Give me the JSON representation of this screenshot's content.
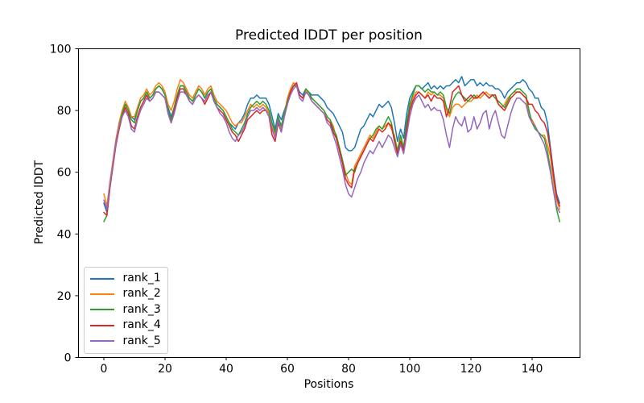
{
  "figure": {
    "title": "Predicted lDDT per position",
    "xlabel": "Positions",
    "ylabel": "Predicted lDDT"
  },
  "chart_data": {
    "type": "line",
    "title": "Predicted lDDT per position",
    "xlabel": "Positions",
    "ylabel": "Predicted lDDT",
    "xlim": [
      -8,
      157
    ],
    "ylim": [
      0,
      100
    ],
    "x_ticks": [
      0,
      20,
      40,
      60,
      80,
      100,
      120,
      140
    ],
    "y_ticks": [
      0,
      20,
      40,
      60,
      80,
      100
    ],
    "grid": false,
    "legend_position": "lower left",
    "n_points": 150,
    "x_start": 0,
    "x_step": 1,
    "series": [
      {
        "name": "rank_1",
        "color": "#1f77b4",
        "values": [
          50,
          47,
          56,
          63,
          70,
          76,
          80,
          82,
          81,
          78,
          77,
          80,
          83,
          84,
          86,
          84,
          85,
          87,
          88,
          87,
          85,
          81,
          78,
          81,
          85,
          88,
          88,
          86,
          84,
          83,
          85,
          87,
          86,
          84,
          86,
          87,
          84,
          82,
          81,
          80,
          78,
          76,
          75,
          74,
          76,
          77,
          79,
          82,
          84,
          84,
          85,
          84,
          84,
          84,
          82,
          78,
          74,
          79,
          77,
          80,
          83,
          86,
          88,
          88,
          86,
          85,
          87,
          86,
          85,
          85,
          85,
          84,
          83,
          81,
          80,
          79,
          77,
          75,
          73,
          68,
          67,
          67,
          68,
          71,
          74,
          75,
          77,
          79,
          78,
          80,
          82,
          81,
          82,
          83,
          81,
          76,
          70,
          74,
          71,
          79,
          84,
          86,
          88,
          88,
          87,
          88,
          89,
          87,
          88,
          87,
          88,
          87,
          88,
          88,
          89,
          90,
          89,
          91,
          88,
          89,
          90,
          90,
          88,
          89,
          88,
          89,
          88,
          88,
          87,
          87,
          86,
          84,
          86,
          87,
          88,
          89,
          89,
          90,
          89,
          87,
          86,
          84,
          84,
          81,
          80,
          76,
          68,
          60,
          53,
          50
        ]
      },
      {
        "name": "rank_2",
        "color": "#ff7f0e",
        "values": [
          53,
          49,
          57,
          64,
          71,
          76,
          80,
          83,
          81,
          78,
          78,
          81,
          84,
          85,
          87,
          85,
          86,
          88,
          89,
          88,
          86,
          82,
          80,
          83,
          87,
          90,
          89,
          87,
          85,
          84,
          86,
          88,
          87,
          85,
          87,
          88,
          85,
          83,
          82,
          81,
          80,
          78,
          76,
          75,
          76,
          76,
          78,
          80,
          82,
          81,
          82,
          81,
          82,
          81,
          79,
          75,
          72,
          78,
          74,
          79,
          84,
          87,
          89,
          88,
          85,
          84,
          87,
          85,
          84,
          83,
          82,
          81,
          80,
          78,
          77,
          75,
          71,
          68,
          64,
          60,
          57,
          56,
          62,
          64,
          66,
          68,
          70,
          72,
          71,
          73,
          75,
          74,
          75,
          76,
          74,
          72,
          67,
          71,
          68,
          75,
          81,
          84,
          86,
          86,
          85,
          84,
          86,
          85,
          86,
          85,
          85,
          84,
          80,
          78,
          81,
          82,
          82,
          81,
          82,
          83,
          83,
          84,
          85,
          84,
          85,
          86,
          85,
          85,
          84,
          82,
          81,
          82,
          84,
          85,
          86,
          86,
          86,
          85,
          84,
          78,
          77,
          75,
          73,
          72,
          72,
          69,
          65,
          57,
          51,
          48
        ]
      },
      {
        "name": "rank_3",
        "color": "#2ca02c",
        "values": [
          44,
          46,
          55,
          63,
          70,
          75,
          79,
          82,
          80,
          77,
          76,
          80,
          83,
          84,
          86,
          84,
          85,
          87,
          88,
          87,
          85,
          80,
          77,
          81,
          85,
          88,
          88,
          86,
          84,
          83,
          85,
          87,
          86,
          84,
          86,
          87,
          84,
          82,
          81,
          80,
          78,
          76,
          74,
          73,
          72,
          74,
          76,
          79,
          81,
          82,
          83,
          82,
          83,
          82,
          80,
          76,
          73,
          78,
          75,
          79,
          83,
          86,
          88,
          88,
          85,
          84,
          87,
          86,
          84,
          83,
          82,
          81,
          80,
          78,
          77,
          74,
          72,
          68,
          64,
          59,
          60,
          61,
          60,
          63,
          65,
          67,
          69,
          71,
          72,
          74,
          75,
          74,
          76,
          78,
          76,
          71,
          67,
          72,
          68,
          76,
          82,
          85,
          88,
          88,
          87,
          86,
          87,
          86,
          86,
          85,
          86,
          85,
          81,
          79,
          83,
          85,
          86,
          85,
          84,
          83,
          84,
          85,
          84,
          85,
          86,
          85,
          84,
          85,
          84,
          83,
          82,
          81,
          83,
          85,
          86,
          87,
          87,
          86,
          85,
          80,
          76,
          74,
          73,
          72,
          71,
          67,
          61,
          54,
          48,
          44
        ]
      },
      {
        "name": "rank_4",
        "color": "#d62728",
        "values": [
          47,
          46,
          55,
          62,
          69,
          74,
          78,
          81,
          79,
          75,
          74,
          78,
          81,
          83,
          85,
          83,
          84,
          86,
          86,
          85,
          84,
          79,
          76,
          80,
          84,
          87,
          87,
          85,
          83,
          82,
          84,
          85,
          84,
          82,
          84,
          86,
          83,
          81,
          80,
          79,
          77,
          75,
          73,
          72,
          70,
          72,
          74,
          77,
          78,
          79,
          80,
          79,
          80,
          80,
          78,
          72,
          70,
          76,
          73,
          78,
          82,
          86,
          88,
          89,
          85,
          84,
          86,
          85,
          83,
          82,
          81,
          80,
          79,
          77,
          76,
          73,
          71,
          67,
          63,
          58,
          56,
          55,
          61,
          63,
          65,
          67,
          69,
          71,
          70,
          72,
          74,
          73,
          74,
          76,
          75,
          70,
          66,
          70,
          67,
          74,
          80,
          83,
          85,
          86,
          85,
          84,
          85,
          83,
          85,
          84,
          84,
          83,
          78,
          81,
          86,
          87,
          88,
          85,
          83,
          84,
          85,
          84,
          84,
          85,
          86,
          85,
          84,
          85,
          85,
          82,
          81,
          80,
          82,
          84,
          85,
          86,
          86,
          85,
          84,
          82,
          82,
          80,
          79,
          77,
          76,
          73,
          67,
          59,
          52,
          49
        ]
      },
      {
        "name": "rank_5",
        "color": "#9467bd",
        "values": [
          51,
          48,
          56,
          63,
          70,
          75,
          78,
          80,
          78,
          74,
          73,
          77,
          80,
          82,
          84,
          83,
          84,
          86,
          86,
          85,
          84,
          79,
          76,
          79,
          83,
          86,
          86,
          85,
          83,
          82,
          84,
          85,
          84,
          83,
          85,
          86,
          83,
          81,
          79,
          78,
          76,
          73,
          71,
          70,
          72,
          73,
          75,
          78,
          80,
          80,
          81,
          80,
          81,
          80,
          78,
          74,
          71,
          77,
          73,
          78,
          82,
          85,
          87,
          88,
          84,
          83,
          86,
          85,
          83,
          82,
          81,
          80,
          79,
          76,
          75,
          72,
          69,
          65,
          61,
          56,
          53,
          52,
          55,
          58,
          60,
          63,
          65,
          67,
          66,
          68,
          70,
          68,
          70,
          72,
          71,
          68,
          65,
          69,
          66,
          72,
          78,
          82,
          84,
          85,
          83,
          81,
          82,
          80,
          81,
          80,
          80,
          77,
          72,
          68,
          74,
          78,
          76,
          75,
          78,
          73,
          74,
          78,
          74,
          76,
          79,
          80,
          74,
          78,
          80,
          76,
          72,
          71,
          75,
          79,
          82,
          84,
          84,
          83,
          82,
          78,
          76,
          75,
          73,
          71,
          69,
          65,
          60,
          54,
          49,
          47
        ]
      }
    ]
  }
}
